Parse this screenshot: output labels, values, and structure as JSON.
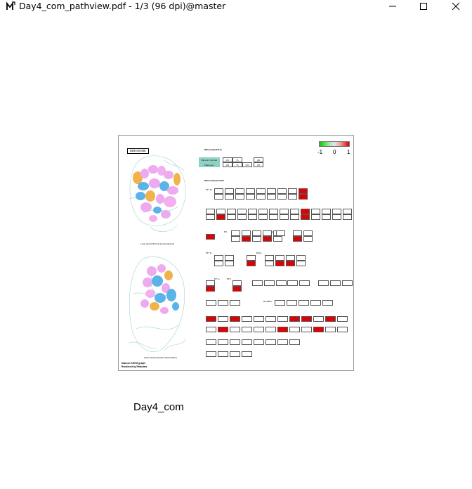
{
  "window": {
    "title": "Day4_com_pathview.pdf - 1/3 (96 dpi)@master",
    "icon": "pdf-viewer-icon",
    "controls": [
      "minimize",
      "maximize",
      "close"
    ]
  },
  "caption": "Day4_com",
  "kegg": {
    "map_title": "RIBOSOME",
    "legend": {
      "min": "-1",
      "mid": "0",
      "max": "1",
      "low_color": "#00d000",
      "mid_color": "#e6e6e6",
      "high_color": "#e00000"
    },
    "sections": {
      "rrnas": "Ribosomal RNAs",
      "proteins": "Ribosomal proteins",
      "large": "Large subunit (Haloarcula marismortui)",
      "small": "Small subunit (Thermus thermophilus)"
    },
    "rrna_table": {
      "rows": [
        "Bacteria / Archaea",
        "Eukaryotes"
      ],
      "cells": [
        "23S",
        "5S",
        "16S",
        "28S",
        "5S",
        "5.8S",
        "18S"
      ]
    },
    "groups": {
      "efth": "EF-Tu",
      "efg": "EF-G",
      "ef2": "EF2",
      "efts": "EF-Ts",
      "rpa": "RpsA",
      "ppgpp": "RbfA",
      "ifs": "IF1",
      "if3": "IF3",
      "lsu": "LSU",
      "ssu": "SSU",
      "eif": "Ba/OBA"
    },
    "footer": [
      "Data on KEGG graph",
      "Rendered by Pathview"
    ]
  }
}
